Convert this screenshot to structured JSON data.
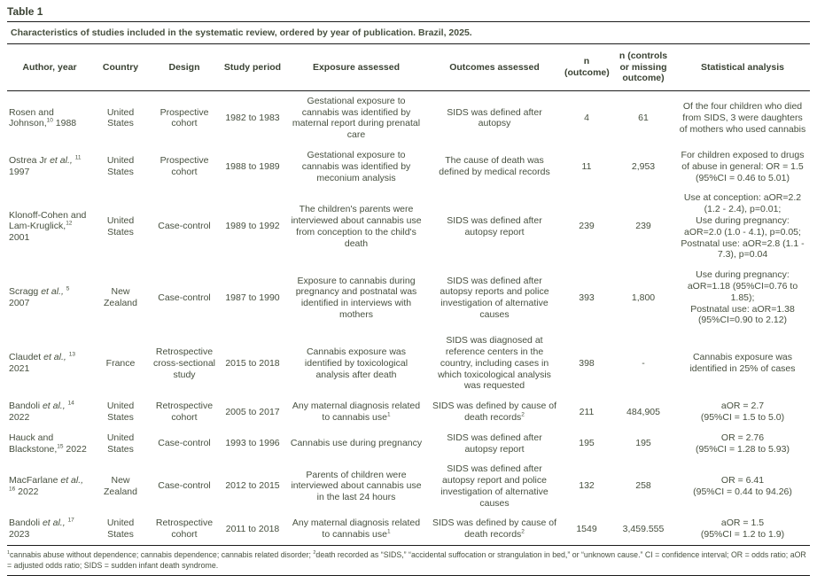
{
  "colors": {
    "text": "#47503f",
    "rule": "#1c1c1c",
    "background": "#ffffff"
  },
  "table_title": "Table 1",
  "caption": "Characteristics of studies included in the systematic review, ordered by year of publication. Brazil, 2025.",
  "table": {
    "headers": [
      "Author, year",
      "Country",
      "Design",
      "Study period",
      "Exposure assessed",
      "Outcomes assessed",
      "n (outcome)",
      "n (controls or missing outcome)",
      "Statistical analysis"
    ],
    "rows": [
      {
        "author_name": "Rosen and Johnson,",
        "author_ref": "10",
        "author_year": "1988",
        "country": "United States",
        "design": "Prospective cohort",
        "period": "1982 to 1983",
        "exposure": "Gestational exposure to cannabis was identified by maternal report during prenatal care",
        "exposure_note": "",
        "outcomes": "SIDS was defined after autopsy",
        "outcomes_note": "",
        "n_outcome": "4",
        "n_controls": "61",
        "statistics": "Of the four children who died from SIDS, 3 were daughters of mothers who used cannabis"
      },
      {
        "author_name": "Ostrea Jr et al., ",
        "author_ref": "11",
        "author_year": "1997",
        "country": "United States",
        "design": "Prospective cohort",
        "period": "1988 to 1989",
        "exposure": "Gestational exposure to cannabis was identified by meconium analysis",
        "exposure_note": "",
        "outcomes": "The cause of death was defined by medical records",
        "outcomes_note": "",
        "n_outcome": "11",
        "n_controls": "2,953",
        "statistics": "For children exposed to drugs of abuse in general: OR = 1.5 (95%CI = 0.46 to 5.01)"
      },
      {
        "author_name": "Klonoff-Cohen and Lam-Kruglick,",
        "author_ref": "12",
        "author_year": "2001",
        "country": "United States",
        "design": "Case-control",
        "period": "1989 to 1992",
        "exposure": "The children's parents were interviewed about cannabis use from conception to the child's death",
        "exposure_note": "",
        "outcomes": "SIDS was defined after autopsy report",
        "outcomes_note": "",
        "n_outcome": "239",
        "n_controls": "239",
        "statistics": "Use at conception: aOR=2.2 (1.2 - 2.4), p=0.01;\nUse during pregnancy: aOR=2.0 (1.0 - 4.1), p=0.05;\nPostnatal use: aOR=2.8 (1.1 - 7.3), p=0.04"
      },
      {
        "author_name": "Scragg et al., ",
        "author_ref": "5",
        "author_year": "2007",
        "country": "New Zealand",
        "design": "Case-control",
        "period": "1987 to 1990",
        "exposure": "Exposure to cannabis during pregnancy and postnatal was identified in interviews with mothers",
        "exposure_note": "",
        "outcomes": "SIDS was defined after autopsy reports and police investigation of alternative causes",
        "outcomes_note": "",
        "n_outcome": "393",
        "n_controls": "1,800",
        "statistics": "Use during pregnancy: aOR=1.18 (95%CI=0.76 to 1.85);\nPostnatal use: aOR=1.38 (95%CI=0.90 to 2.12)"
      },
      {
        "author_name": "Claudet et al., ",
        "author_ref": "13",
        "author_year": "2021",
        "country": "France",
        "design": "Retrospective cross-sectional study",
        "period": "2015 to 2018",
        "exposure": "Cannabis exposure was identified by toxicological analysis after death",
        "exposure_note": "",
        "outcomes": "SIDS was diagnosed at reference centers in the country, including cases in which toxicological analysis was requested",
        "outcomes_note": "",
        "n_outcome": "398",
        "n_controls": "-",
        "statistics": "Cannabis exposure was identified in 25% of cases"
      },
      {
        "author_name": "Bandoli et al., ",
        "author_ref": "14",
        "author_year": "2022",
        "country": "United States",
        "design": "Retrospective cohort",
        "period": "2005 to 2017",
        "exposure": "Any maternal diagnosis related to cannabis use",
        "exposure_note": "1",
        "outcomes": "SIDS was defined by cause of death records",
        "outcomes_note": "2",
        "n_outcome": "211",
        "n_controls": "484,905",
        "statistics": "aOR = 2.7\n(95%CI = 1.5 to 5.0)"
      },
      {
        "author_name": "Hauck and Blackstone,",
        "author_ref": "15",
        "author_year": "2022",
        "country": "United States",
        "design": "Case-control",
        "period": "1993 to 1996",
        "exposure": "Cannabis use during pregnancy",
        "exposure_note": "",
        "outcomes": "SIDS was defined after autopsy report",
        "outcomes_note": "",
        "n_outcome": "195",
        "n_controls": "195",
        "statistics": "OR = 2.76\n(95%CI = 1.28 to 5.93)"
      },
      {
        "author_name": "MacFarlane et al., ",
        "author_ref": "16",
        "author_year": "2022",
        "country": "New Zealand",
        "design": "Case-control",
        "period": "2012 to 2015",
        "exposure": "Parents of children were interviewed about cannabis use in the last 24 hours",
        "exposure_note": "",
        "outcomes": "SIDS was defined after autopsy report and police investigation of alternative causes",
        "outcomes_note": "",
        "n_outcome": "132",
        "n_controls": "258",
        "statistics": "OR = 6.41\n(95%CI = 0.44 to 94.26)"
      },
      {
        "author_name": "Bandoli et al., ",
        "author_ref": "17",
        "author_year": "2023",
        "country": "United States",
        "design": "Retrospective cohort",
        "period": "2011 to 2018",
        "exposure": "Any maternal diagnosis related to cannabis use",
        "exposure_note": "1",
        "outcomes": "SIDS was defined by cause of death records",
        "outcomes_note": "2",
        "n_outcome": "1549",
        "n_controls": "3,459.555",
        "statistics": "aOR = 1.5\n(95%CI = 1.2 to 1.9)"
      }
    ]
  },
  "footnote": {
    "parts": [
      {
        "sup": "1",
        "text": "cannabis abuse without dependence; cannabis dependence; cannabis related disorder; "
      },
      {
        "sup": "2",
        "text": "death recorded as “SIDS,” “accidental suffocation or strangulation in bed,” or “unknown cause.” CI = confidence interval; OR = odds ratio; aOR = adjusted odds ratio; SIDS = sudden infant death syndrome."
      }
    ]
  }
}
